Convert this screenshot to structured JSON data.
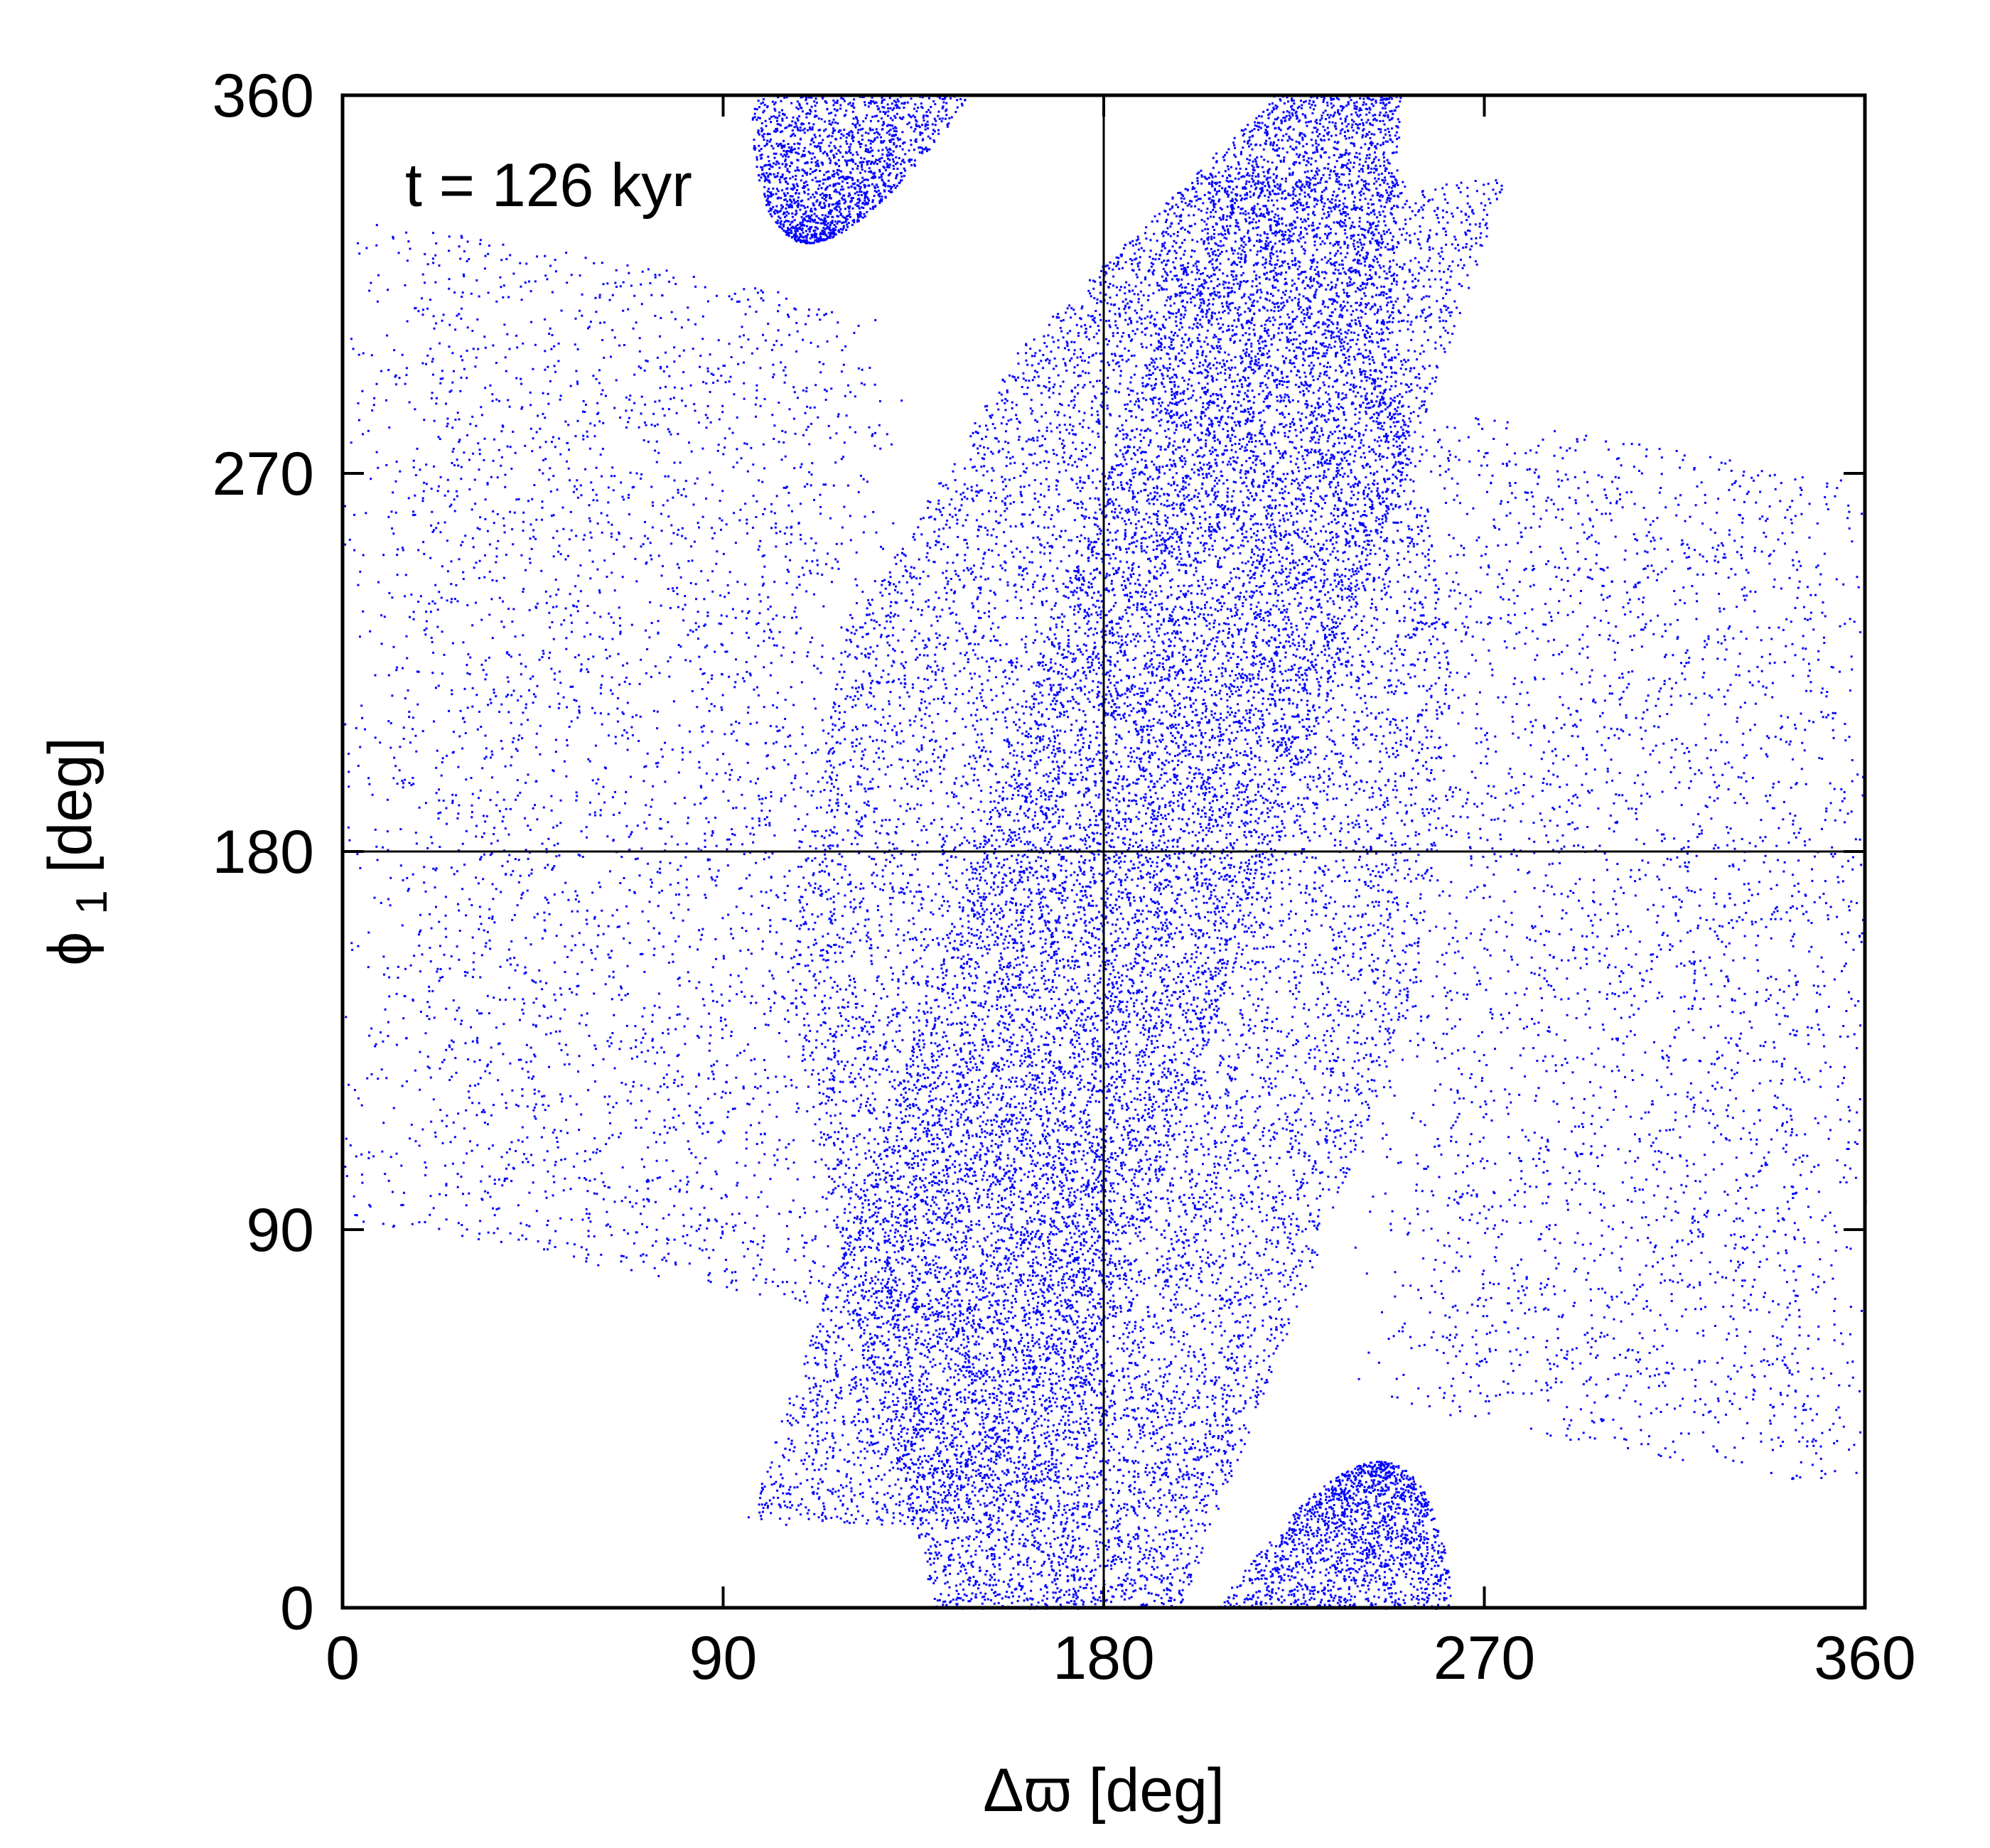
{
  "chart_data": {
    "type": "scatter",
    "title": "",
    "annotation": "t = 126 kyr",
    "xlabel": "Δϖ [deg]",
    "ylabel_main": "ϕ",
    "ylabel_sub": "1",
    "ylabel_unit": "[deg]",
    "xlim": [
      0,
      360
    ],
    "ylim": [
      0,
      360
    ],
    "xticks": [
      0,
      90,
      180,
      270,
      360
    ],
    "yticks": [
      0,
      90,
      180,
      270,
      360
    ],
    "reference_lines": {
      "x": 180,
      "y": 180
    },
    "grid": false,
    "legend": "none",
    "point_color": "#0000ff",
    "regions": {
      "central_band": {
        "description_values": "dense tilted band",
        "left_edge": [
          [
            140,
            0
          ],
          [
            120,
            70
          ],
          [
            105,
            150
          ],
          [
            118,
            230
          ],
          [
            160,
            300
          ],
          [
            220,
            360
          ]
        ],
        "right_edge": [
          [
            198,
            0
          ],
          [
            225,
            70
          ],
          [
            255,
            150
          ],
          [
            262,
            230
          ],
          [
            248,
            300
          ],
          [
            250,
            360
          ]
        ]
      },
      "top_blob_center": [
        110,
        352
      ],
      "bottom_blob_center": [
        245,
        12
      ]
    }
  }
}
